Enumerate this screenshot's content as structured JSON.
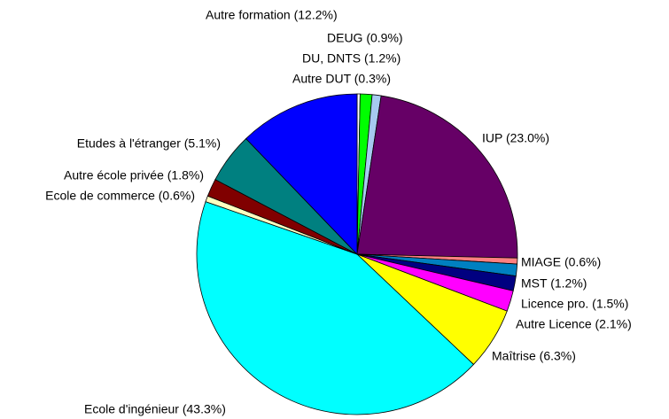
{
  "chart_data": {
    "type": "pie",
    "value_labels": [
      "Autre DUT (0.3%)",
      "DU, DNTS (1.2%)",
      "DEUG (0.9%)",
      "IUP (23.0%)",
      "MIAGE (0.6%)",
      "MST (1.2%)",
      "Licence pro. (1.5%)",
      "Autre Licence (2.1%)",
      "Maîtrise (6.3%)",
      "Ecole d'ingénieur (43.3%)",
      "Ecole de commerce (0.6%)",
      "Autre école privée (1.8%)",
      "Etudes à l'étranger (5.1%)",
      "Autre formation (12.2%)"
    ],
    "values": [
      0.3,
      1.2,
      0.9,
      23.0,
      0.6,
      1.2,
      1.5,
      2.1,
      6.3,
      43.3,
      0.6,
      1.8,
      5.1,
      12.2
    ],
    "colors": [
      "#ffffff",
      "#00ff00",
      "#a6caf0",
      "#660066",
      "#ff8080",
      "#0080c0",
      "#000080",
      "#ff00ff",
      "#ffff00",
      "#00ffff",
      "#ffffc0",
      "#800000",
      "#008080",
      "#0000ff"
    ]
  }
}
